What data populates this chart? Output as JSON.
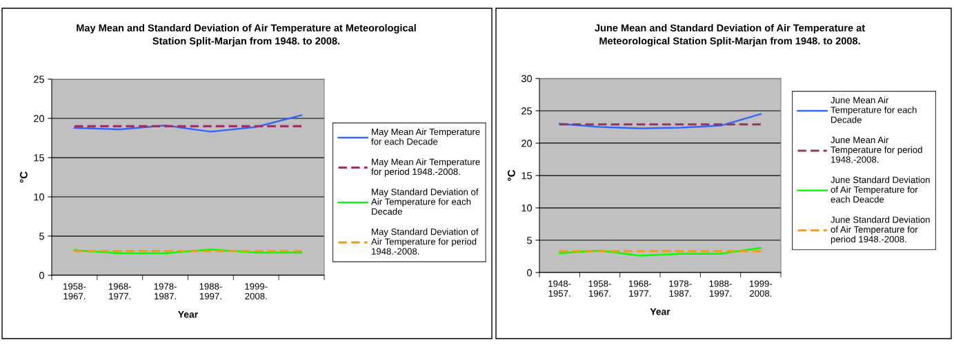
{
  "chart_data": [
    {
      "type": "line",
      "title": "May Mean and Standard Deviation of Air Temperature at Meteorological Station Split-Marjan from 1948. to 2008.",
      "xlabel": "Year",
      "ylabel": "°C",
      "categories": [
        "1958-1967.",
        "1968-1977.",
        "1978-1987.",
        "1988-1997.",
        "1999-2008.",
        null
      ],
      "ylim": [
        0,
        25
      ],
      "yticks": [
        0,
        5,
        10,
        15,
        20,
        25
      ],
      "grid": "y",
      "legend": "right",
      "marker": "none",
      "series": [
        {
          "name": "May Mean Air Temperature for each Decade",
          "color": "#3366ff",
          "line_style": "solid",
          "values": [
            18.8,
            18.6,
            19.1,
            18.3,
            18.9,
            20.4
          ]
        },
        {
          "name": "May Mean Air Temperature for period 1948.-2008.",
          "color": "#993366",
          "line_style": "dashed",
          "values": [
            19.0,
            19.0,
            19.0,
            19.0,
            19.0,
            19.0
          ]
        },
        {
          "name": "May Standard Deviation of Air Temperature for each Decade",
          "color": "#00ff00",
          "line_style": "solid",
          "values": [
            3.2,
            2.8,
            2.8,
            3.3,
            2.9,
            2.9
          ]
        },
        {
          "name": "May Standard Deviation of Air Temperature for period 1948.-2008.",
          "color": "#ff9900",
          "line_style": "dashed",
          "values": [
            3.1,
            3.1,
            3.1,
            3.1,
            3.1,
            3.1
          ]
        }
      ]
    },
    {
      "type": "line",
      "title": "June Mean and Standard Deviation of Air Temperature at Meteorological Station Split-Marjan from 1948. to 2008.",
      "xlabel": "Year",
      "ylabel": "°C",
      "categories": [
        "1948-1957.",
        "1958-1967.",
        "1968-1977.",
        "1978-1987.",
        "1988-1997.",
        "1999-2008."
      ],
      "ylim": [
        0,
        30
      ],
      "yticks": [
        0,
        5,
        10,
        15,
        20,
        25,
        30
      ],
      "grid": "y",
      "legend": "right",
      "marker": "none",
      "series": [
        {
          "name": "June Mean Air Temperature for each Decade",
          "color": "#3366ff",
          "line_style": "solid",
          "values": [
            23.0,
            22.5,
            22.3,
            22.4,
            22.7,
            24.5
          ]
        },
        {
          "name": "June Mean Air Temperature for period 1948.-2008.",
          "color": "#993366",
          "line_style": "dashed",
          "values": [
            22.9,
            22.9,
            22.9,
            22.9,
            22.9,
            22.9
          ]
        },
        {
          "name": "June Standard Deviation of Air Temperature for each Deacde",
          "color": "#00ff00",
          "line_style": "solid",
          "values": [
            3.0,
            3.4,
            2.6,
            2.9,
            2.9,
            3.8
          ]
        },
        {
          "name": "June Standard Deviation of Air Temperature for period 1948.-2008.",
          "color": "#ff9900",
          "line_style": "dashed",
          "values": [
            3.3,
            3.3,
            3.3,
            3.3,
            3.3,
            3.3
          ]
        }
      ]
    }
  ]
}
